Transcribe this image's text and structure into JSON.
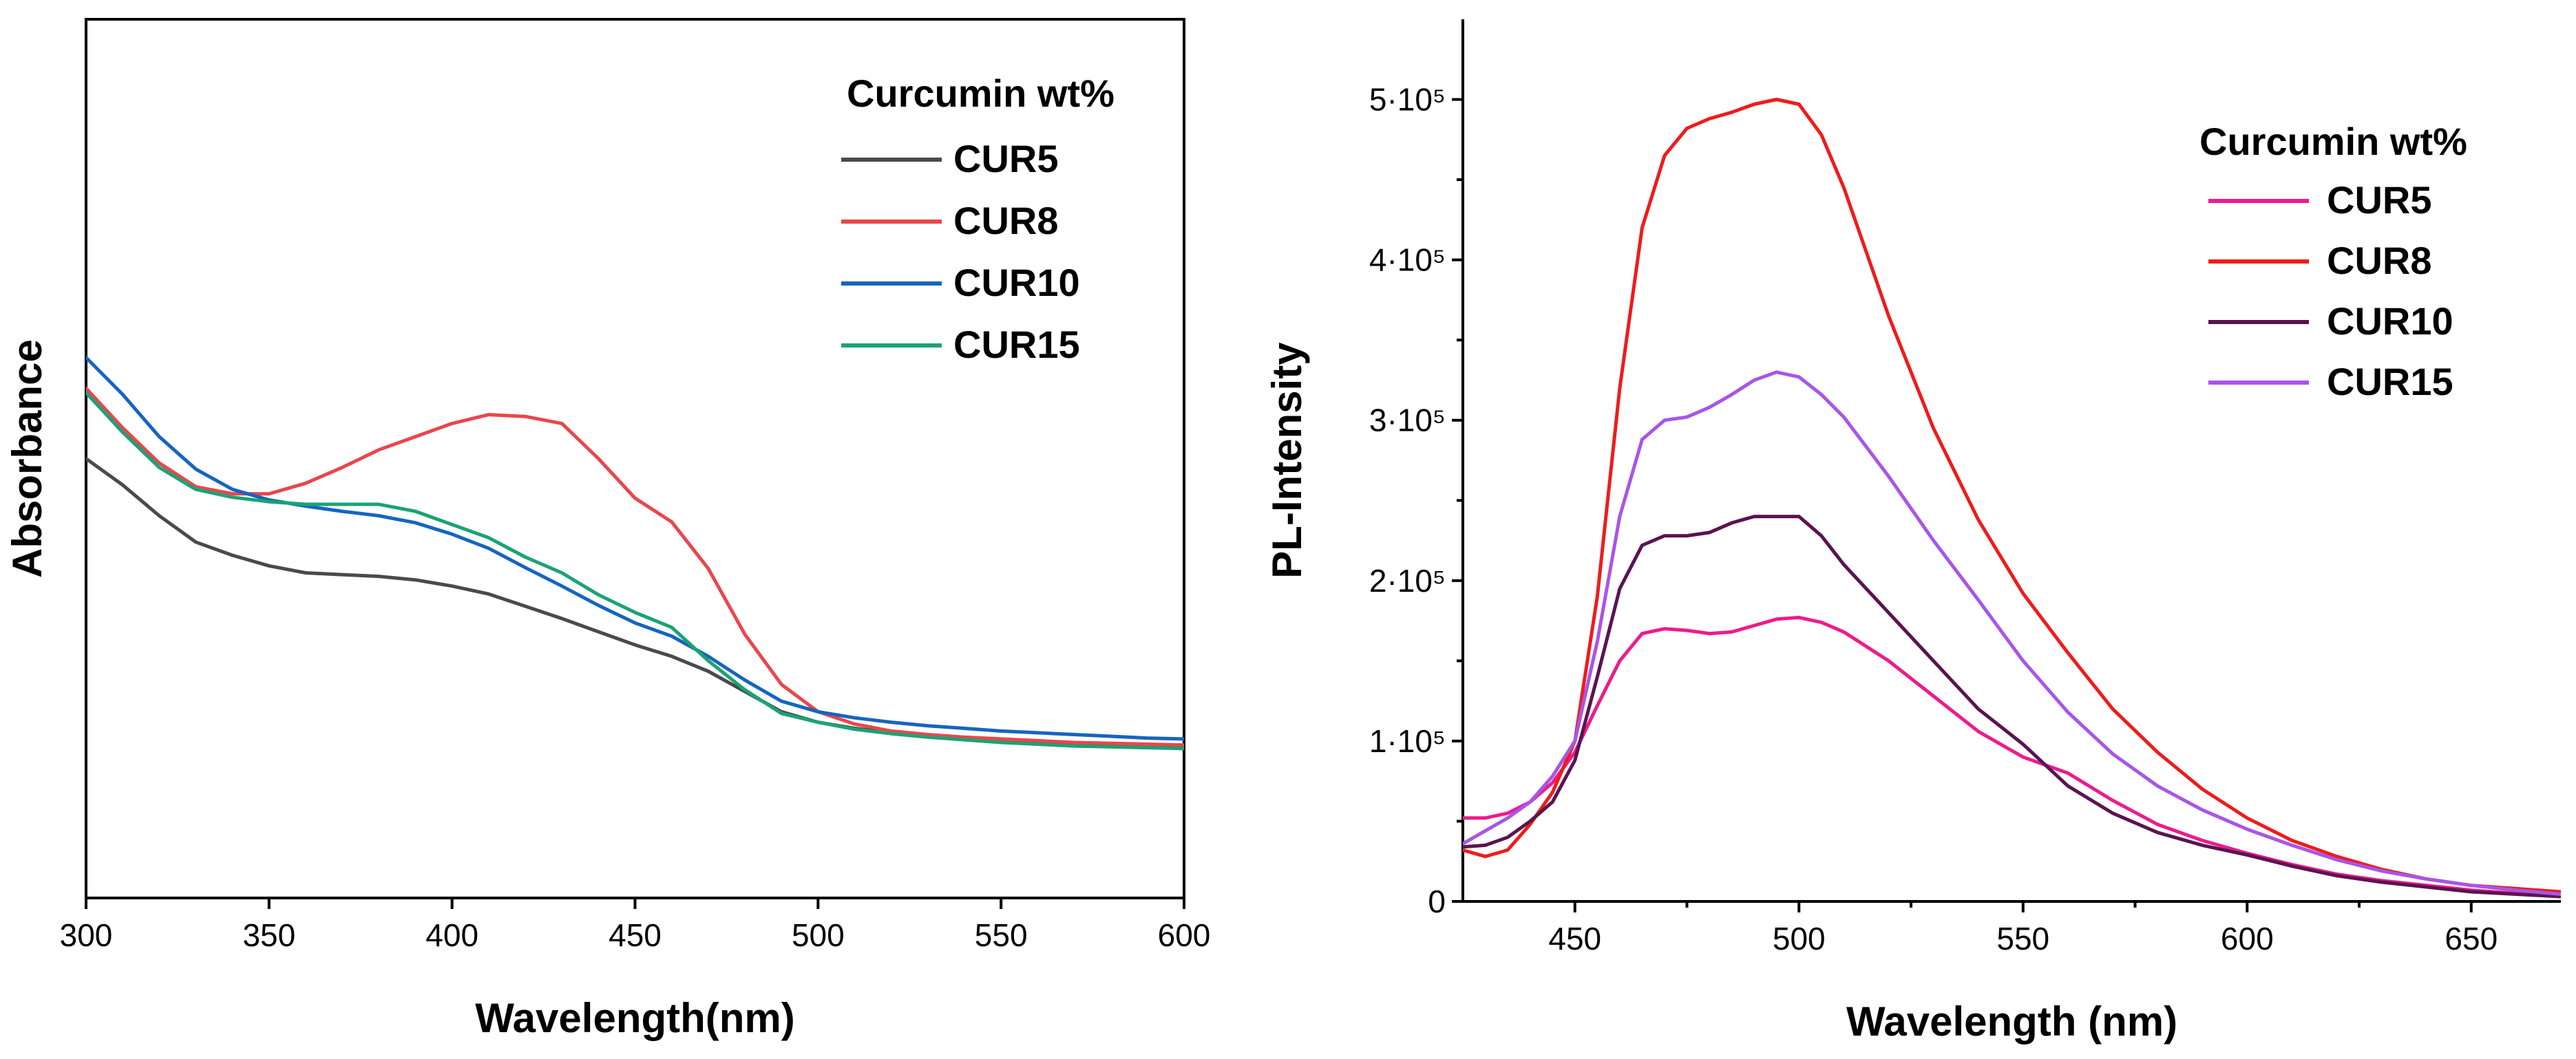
{
  "chart_data": [
    {
      "type": "line",
      "title": "",
      "xlabel": "Wavelength(nm)",
      "ylabel": "Absorbance",
      "xlim": [
        300,
        600
      ],
      "ylim": [
        0,
        1
      ],
      "x_ticks": [
        300,
        350,
        400,
        450,
        500,
        550,
        600
      ],
      "y_ticks": [],
      "legend_title": "Curcumin wt%",
      "legend_position": "top-right",
      "series": [
        {
          "name": "CUR5",
          "color": "#4a4a4a",
          "x": [
            300,
            310,
            320,
            330,
            340,
            350,
            360,
            370,
            380,
            390,
            400,
            410,
            420,
            430,
            440,
            450,
            460,
            470,
            480,
            490,
            500,
            510,
            520,
            530,
            540,
            550,
            560,
            570,
            580,
            590,
            600
          ],
          "y": [
            0.5,
            0.47,
            0.435,
            0.405,
            0.39,
            0.378,
            0.37,
            0.368,
            0.366,
            0.362,
            0.355,
            0.346,
            0.332,
            0.318,
            0.303,
            0.288,
            0.275,
            0.258,
            0.235,
            0.212,
            0.2,
            0.193,
            0.188,
            0.184,
            0.181,
            0.179,
            0.177,
            0.175,
            0.174,
            0.172,
            0.171
          ]
        },
        {
          "name": "CUR8",
          "color": "#e8474c",
          "x": [
            300,
            310,
            320,
            330,
            340,
            350,
            360,
            370,
            380,
            390,
            400,
            410,
            420,
            430,
            440,
            450,
            460,
            470,
            480,
            490,
            500,
            510,
            520,
            530,
            540,
            550,
            560,
            570,
            580,
            590,
            600
          ],
          "y": [
            0.58,
            0.535,
            0.495,
            0.468,
            0.46,
            0.46,
            0.472,
            0.49,
            0.51,
            0.525,
            0.54,
            0.55,
            0.548,
            0.54,
            0.5,
            0.455,
            0.428,
            0.375,
            0.3,
            0.243,
            0.212,
            0.198,
            0.19,
            0.186,
            0.183,
            0.181,
            0.179,
            0.177,
            0.176,
            0.175,
            0.174
          ]
        },
        {
          "name": "CUR10",
          "color": "#1565c0",
          "x": [
            300,
            310,
            320,
            330,
            340,
            350,
            360,
            370,
            380,
            390,
            400,
            410,
            420,
            430,
            440,
            450,
            460,
            470,
            480,
            490,
            500,
            510,
            520,
            530,
            540,
            550,
            560,
            570,
            580,
            590,
            600
          ],
          "y": [
            0.615,
            0.573,
            0.525,
            0.488,
            0.465,
            0.453,
            0.446,
            0.44,
            0.435,
            0.427,
            0.414,
            0.398,
            0.376,
            0.355,
            0.333,
            0.313,
            0.298,
            0.275,
            0.248,
            0.224,
            0.212,
            0.205,
            0.2,
            0.196,
            0.193,
            0.19,
            0.188,
            0.186,
            0.184,
            0.182,
            0.181
          ]
        },
        {
          "name": "CUR15",
          "color": "#1aa374",
          "x": [
            300,
            310,
            320,
            330,
            340,
            350,
            360,
            370,
            380,
            390,
            400,
            410,
            420,
            430,
            440,
            450,
            460,
            470,
            480,
            490,
            500,
            510,
            520,
            530,
            540,
            550,
            560,
            570,
            580,
            590,
            600
          ],
          "y": [
            0.575,
            0.53,
            0.49,
            0.465,
            0.456,
            0.451,
            0.448,
            0.448,
            0.448,
            0.44,
            0.425,
            0.41,
            0.388,
            0.37,
            0.345,
            0.325,
            0.308,
            0.27,
            0.237,
            0.21,
            0.2,
            0.192,
            0.187,
            0.183,
            0.18,
            0.177,
            0.175,
            0.173,
            0.172,
            0.171,
            0.17
          ]
        }
      ]
    },
    {
      "type": "line",
      "title": "",
      "xlabel": "Wavelength (nm)",
      "ylabel": "PL-Intensity",
      "xlim": [
        425,
        670
      ],
      "ylim": [
        0,
        550000
      ],
      "x_ticks": [
        450,
        500,
        550,
        600,
        650
      ],
      "x_minor_ticks": [
        475,
        525,
        575,
        625
      ],
      "y_ticks": [
        0,
        100000,
        200000,
        300000,
        400000,
        500000
      ],
      "y_minor_ticks": [
        50000,
        150000,
        250000,
        350000,
        450000
      ],
      "y_tick_labels": [
        "0",
        "1·10⁵",
        "2·10⁵",
        "3·10⁵",
        "4·10⁵",
        "5·10⁵"
      ],
      "legend_title": "Curcumin wt%",
      "legend_position": "top-right",
      "series": [
        {
          "name": "CUR5",
          "color": "#ec1c8c",
          "x": [
            425,
            430,
            435,
            440,
            445,
            450,
            455,
            460,
            465,
            470,
            475,
            480,
            485,
            490,
            495,
            500,
            505,
            510,
            520,
            530,
            540,
            550,
            560,
            570,
            580,
            590,
            600,
            610,
            620,
            630,
            640,
            650,
            660,
            670
          ],
          "y": [
            52000,
            52000,
            55000,
            62000,
            74000,
            93000,
            122000,
            150000,
            167000,
            170000,
            169000,
            167000,
            168000,
            172000,
            176000,
            177000,
            174000,
            168000,
            150000,
            128000,
            106000,
            90000,
            80000,
            63000,
            48000,
            38000,
            30000,
            23000,
            17000,
            13000,
            10000,
            7000,
            5000,
            3500
          ]
        },
        {
          "name": "CUR8",
          "color": "#ee1c1c",
          "x": [
            425,
            430,
            435,
            440,
            445,
            450,
            455,
            460,
            465,
            470,
            475,
            480,
            485,
            490,
            495,
            500,
            505,
            510,
            520,
            530,
            540,
            550,
            560,
            570,
            580,
            590,
            600,
            610,
            620,
            630,
            640,
            650,
            660,
            670
          ],
          "y": [
            32000,
            28000,
            32000,
            48000,
            68000,
            100000,
            190000,
            320000,
            420000,
            465000,
            482000,
            488000,
            492000,
            497000,
            500000,
            497000,
            478000,
            445000,
            365000,
            295000,
            238000,
            192000,
            155000,
            120000,
            93000,
            70000,
            52000,
            38000,
            28000,
            20000,
            14000,
            10000,
            8000,
            6000
          ]
        },
        {
          "name": "CUR10",
          "color": "#5a1450",
          "x": [
            425,
            430,
            435,
            440,
            445,
            450,
            455,
            460,
            465,
            470,
            475,
            480,
            485,
            490,
            495,
            500,
            505,
            510,
            520,
            530,
            540,
            550,
            560,
            570,
            580,
            590,
            600,
            610,
            620,
            630,
            640,
            650,
            660,
            670
          ],
          "y": [
            34000,
            35000,
            40000,
            50000,
            62000,
            88000,
            140000,
            195000,
            222000,
            228000,
            228000,
            230000,
            236000,
            240000,
            240000,
            240000,
            228000,
            210000,
            180000,
            150000,
            120000,
            98000,
            72000,
            55000,
            43000,
            35000,
            29000,
            22000,
            16000,
            12000,
            9000,
            6000,
            4500,
            3000
          ]
        },
        {
          "name": "CUR15",
          "color": "#a855e8",
          "x": [
            425,
            430,
            435,
            440,
            445,
            450,
            455,
            460,
            465,
            470,
            475,
            480,
            485,
            490,
            495,
            500,
            505,
            510,
            520,
            530,
            540,
            550,
            560,
            570,
            580,
            590,
            600,
            610,
            620,
            630,
            640,
            650,
            660,
            670
          ],
          "y": [
            36000,
            44000,
            52000,
            62000,
            78000,
            100000,
            162000,
            240000,
            288000,
            300000,
            302000,
            308000,
            316000,
            325000,
            330000,
            327000,
            316000,
            302000,
            265000,
            225000,
            188000,
            150000,
            118000,
            92000,
            72000,
            57000,
            45000,
            35000,
            26000,
            19000,
            14000,
            10000,
            7000,
            4500
          ]
        }
      ]
    }
  ]
}
